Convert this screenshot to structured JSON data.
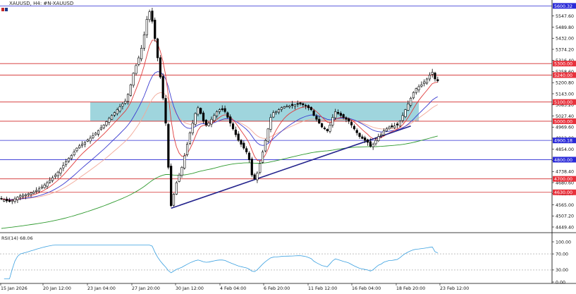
{
  "header": {
    "title": "XAUUSD, H4:  #N-XAUUSD",
    "icons": [
      "symbol-flag-icon",
      "symbol-flag-icon"
    ]
  },
  "rsi_panel": {
    "label": "RSI(14) 68.06"
  },
  "colors": {
    "background": "#ffffff",
    "candle": "#000000",
    "zone_fill": "#9fd5dd",
    "ema_fast": "#e03c3c",
    "ema_medium": "#3c3cd0",
    "ema_slow_light": "#f2a898",
    "ema_long": "#2e9a2e",
    "trendline": "#23238c",
    "resistance_line": "#d22a2a",
    "support_line": "#2a2ad2",
    "rsi_line": "#3aa0e0",
    "red_label_bg": "#e8323c",
    "blue_label_bg": "#2b2bd8"
  },
  "chart_data": {
    "type": "candlestick",
    "title": "XAUUSD, H4:  #N-XAUUSD",
    "symbol": "XAUUSD",
    "timeframe": "H4",
    "ylim": [
      4420,
      5620
    ],
    "y_ticks": [
      {
        "value": 5547.6,
        "label": "5547.60"
      },
      {
        "value": 5489.8,
        "label": "5489.80"
      },
      {
        "value": 5432.0,
        "label": "5432.00"
      },
      {
        "value": 5374.2,
        "label": "5374.20"
      },
      {
        "value": 5316.4,
        "label": "5316.40"
      },
      {
        "value": 5258.6,
        "label": "5258.60"
      },
      {
        "value": 5200.8,
        "label": "5200.80"
      },
      {
        "value": 5143.0,
        "label": "5143.00"
      },
      {
        "value": 5085.2,
        "label": "5085.20"
      },
      {
        "value": 5027.4,
        "label": "5027.40"
      },
      {
        "value": 4969.6,
        "label": "4969.60"
      },
      {
        "value": 4912.0,
        "label": "4912.00"
      },
      {
        "value": 4854.0,
        "label": "4854.00"
      },
      {
        "value": 4796.2,
        "label": "4796.20"
      },
      {
        "value": 4738.4,
        "label": "4738.40"
      },
      {
        "value": 4680.6,
        "label": "4680.60"
      },
      {
        "value": 4622.8,
        "label": "4622.80"
      },
      {
        "value": 4565.0,
        "label": "4565.00"
      },
      {
        "value": 4507.2,
        "label": "4507.20"
      },
      {
        "value": 4449.4,
        "label": "4449.40"
      }
    ],
    "x_labels": [
      "15 Jan 2026",
      "20 Jan 12:00",
      "23 Jan 04:00",
      "27 Jan 20:00",
      "30 Jan 12:00",
      "4 Feb 04:00",
      "6 Feb 20:00",
      "11 Feb 12:00",
      "16 Feb 04:00",
      "18 Feb 20:00",
      "23 Feb 12:00"
    ],
    "levels": [
      {
        "value": 5600.32,
        "label": "5600.32",
        "color": "blue",
        "labeled": true
      },
      {
        "value": 5300.0,
        "label": "5300.00",
        "color": "red",
        "labeled": true
      },
      {
        "value": 5240.0,
        "label": "5240.00",
        "color": "red",
        "labeled": true
      },
      {
        "value": 5100.0,
        "label": "5100.00",
        "color": "red",
        "labeled": true
      },
      {
        "value": 5000.0,
        "label": "5000.00",
        "color": "red",
        "labeled": true
      },
      {
        "value": 4900.18,
        "label": "4900.18",
        "color": "blue",
        "labeled": true
      },
      {
        "value": 4800.0,
        "label": "4800.00",
        "color": "blue",
        "labeled": true
      },
      {
        "value": 4700.0,
        "label": "4700.00",
        "color": "red",
        "labeled": true
      },
      {
        "value": 4630.0,
        "label": "4630.00",
        "color": "red",
        "labeled": true
      }
    ],
    "zone": {
      "from_price": 5000,
      "to_price": 5100,
      "from_bar": 33,
      "to_bar": 155
    },
    "trendline": {
      "from_bar": 63,
      "from_price": 4547,
      "to_bar": 152,
      "to_price": 4975
    },
    "closes": [
      4595,
      4590,
      4585,
      4582,
      4588,
      4596,
      4605,
      4612,
      4615,
      4618,
      4622,
      4627,
      4632,
      4640,
      4648,
      4658,
      4668,
      4680,
      4692,
      4706,
      4720,
      4735,
      4752,
      4770,
      4790,
      4808,
      4822,
      4840,
      4860,
      4872,
      4880,
      4890,
      4902,
      4912,
      4925,
      4938,
      4952,
      4966,
      4980,
      4998,
      5015,
      5030,
      5045,
      5060,
      5075,
      5090,
      5105,
      5140,
      5190,
      5250,
      5290,
      5330,
      5380,
      5450,
      5530,
      5570,
      5520,
      5430,
      5330,
      5230,
      5120,
      4990,
      4760,
      4560,
      4620,
      4680,
      4720,
      4760,
      4820,
      4880,
      4940,
      4990,
      5040,
      5070,
      5040,
      5000,
      4980,
      4990,
      5010,
      5030,
      5050,
      5060,
      5060,
      5050,
      5020,
      4990,
      4960,
      4930,
      4900,
      4880,
      4860,
      4840,
      4800,
      4720,
      4700,
      4730,
      4780,
      4840,
      4900,
      4960,
      5020,
      5045,
      5050,
      5060,
      5070,
      5075,
      5078,
      5080,
      5082,
      5085,
      5088,
      5090,
      5085,
      5080,
      5070,
      5060,
      5030,
      5010,
      4990,
      4970,
      4960,
      4950,
      4980,
      5020,
      5050,
      5040,
      5030,
      5020,
      5010,
      5000,
      4980,
      4960,
      4940,
      4920,
      4910,
      4900,
      4890,
      4870,
      4880,
      4900,
      4920,
      4930,
      4950,
      4960,
      4970,
      4970,
      4975,
      4980,
      5000,
      5030,
      5060,
      5090,
      5120,
      5150,
      5170,
      5180,
      5190,
      5205,
      5220,
      5240,
      5255,
      5220,
      5210
    ],
    "rsi": {
      "period": 14,
      "value": 68.06,
      "levels": [
        70,
        30
      ],
      "ticks": [
        {
          "value": 100,
          "label": "100.00"
        },
        {
          "value": 70,
          "label": "70.00"
        },
        {
          "value": 30,
          "label": "30.00"
        },
        {
          "value": 0,
          "label": "0.00"
        }
      ]
    }
  }
}
